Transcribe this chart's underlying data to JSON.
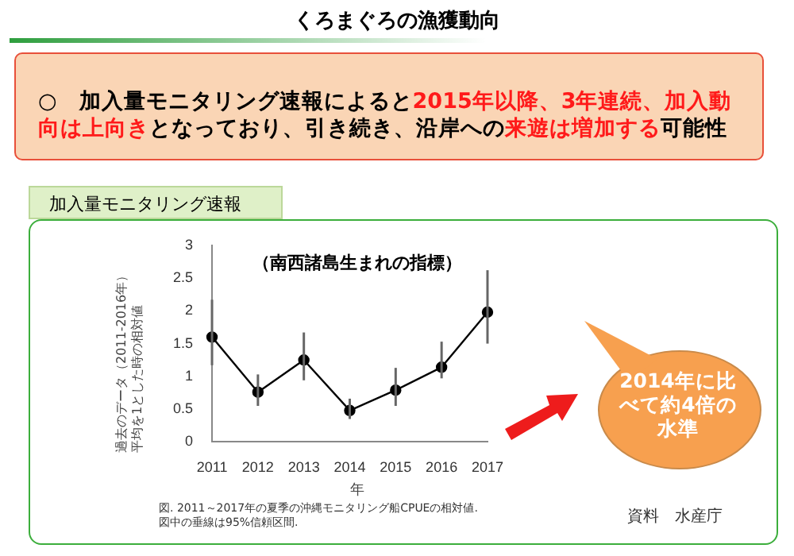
{
  "chart_data": {
    "type": "line",
    "title": "くろまぐろの漁獲動向",
    "subtitle": "（南西諸島生まれの指標）",
    "xlabel": "年",
    "ylabel": "過去のデータ（2011-2016年）平均を1とした時の相対値",
    "categories": [
      "2011",
      "2012",
      "2013",
      "2014",
      "2015",
      "2016",
      "2017"
    ],
    "series": [
      {
        "color": "#000000",
        "values": [
          1.6,
          0.76,
          1.25,
          0.48,
          0.79,
          1.14,
          1.98
        ],
        "errors": [
          [
            1.17,
            2.17
          ],
          [
            0.55,
            1.03
          ],
          [
            0.94,
            1.67
          ],
          [
            0.35,
            0.66
          ],
          [
            0.55,
            1.13
          ],
          [
            0.97,
            1.53
          ],
          [
            1.5,
            2.62
          ]
        ]
      }
    ],
    "ylim": [
      0,
      3
    ],
    "yticks": [
      0,
      0.5,
      1,
      1.5,
      2,
      2.5,
      3
    ],
    "grid": false,
    "legend": false,
    "marker": "circle",
    "line_style": "solid",
    "annotations": [
      "○　加入量モニタリング速報によると",
      "2015年以降、3年連続、加入動向は上向き",
      "となっており、引き続き、沿岸への",
      "来遊は増加する",
      "可能性",
      "加入量モニタリング速報",
      "2014年に比べて約4倍の水準",
      "図. 2011～2017年の夏季の沖縄モニタリング船CPUEの相対値.",
      "図中の垂線は95%信頼区間.",
      "資料　水産庁"
    ]
  }
}
